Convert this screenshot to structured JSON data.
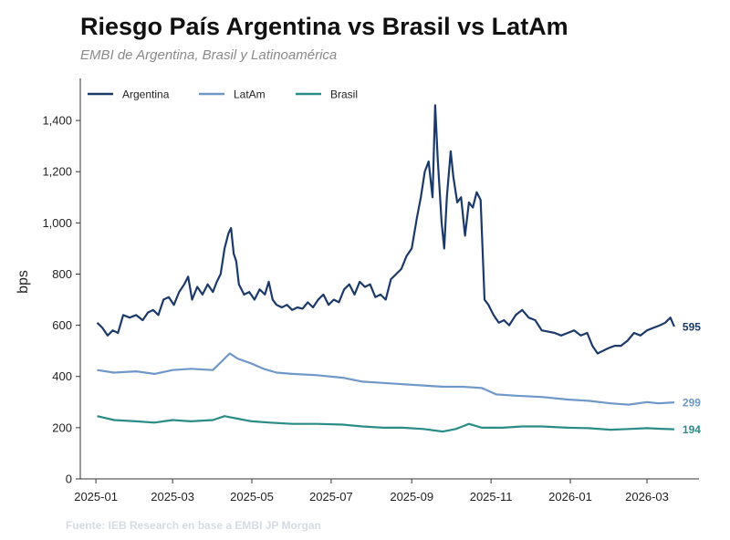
{
  "title": "Riesgo País Argentina vs Brasil vs LatAm",
  "subtitle": "EMBI de Argentina, Brasil y Latinoamérica",
  "source": "Fuente: IEB Research en base a EMBI JP Morgan",
  "chart_data": {
    "type": "line",
    "title": "Riesgo País Argentina vs Brasil vs LatAm",
    "subtitle": "EMBI de Argentina, Brasil y Latinoamérica",
    "xlabel": "",
    "ylabel": "bps",
    "ylim": [
      0,
      1550
    ],
    "xlim": [
      "2024-12-20",
      "2026-04-10"
    ],
    "yticks": [
      0,
      200,
      400,
      600,
      800,
      1000,
      1200,
      1400
    ],
    "ytick_labels": [
      "0",
      "200",
      "400",
      "600",
      "800",
      "1,000",
      "1,200",
      "1,400"
    ],
    "xticks": [
      "2025-01",
      "2025-03",
      "2025-05",
      "2025-07",
      "2025-09",
      "2025-11",
      "2026-01",
      "2026-03"
    ],
    "grid": false,
    "legend": "top-left",
    "series": [
      {
        "name": "Argentina",
        "color": "#1b3a6b",
        "end_label": "595",
        "points": [
          [
            "2025-01-02",
            610
          ],
          [
            "2025-01-06",
            590
          ],
          [
            "2025-01-10",
            560
          ],
          [
            "2025-01-14",
            580
          ],
          [
            "2025-01-18",
            570
          ],
          [
            "2025-01-22",
            640
          ],
          [
            "2025-01-27",
            630
          ],
          [
            "2025-02-01",
            640
          ],
          [
            "2025-02-06",
            620
          ],
          [
            "2025-02-10",
            650
          ],
          [
            "2025-02-14",
            660
          ],
          [
            "2025-02-18",
            640
          ],
          [
            "2025-02-22",
            700
          ],
          [
            "2025-02-26",
            710
          ],
          [
            "2025-03-02",
            680
          ],
          [
            "2025-03-06",
            730
          ],
          [
            "2025-03-10",
            760
          ],
          [
            "2025-03-13",
            790
          ],
          [
            "2025-03-16",
            700
          ],
          [
            "2025-03-20",
            750
          ],
          [
            "2025-03-24",
            720
          ],
          [
            "2025-03-28",
            760
          ],
          [
            "2025-04-01",
            730
          ],
          [
            "2025-04-04",
            770
          ],
          [
            "2025-04-07",
            800
          ],
          [
            "2025-04-10",
            900
          ],
          [
            "2025-04-13",
            960
          ],
          [
            "2025-04-15",
            980
          ],
          [
            "2025-04-17",
            880
          ],
          [
            "2025-04-19",
            850
          ],
          [
            "2025-04-21",
            760
          ],
          [
            "2025-04-25",
            720
          ],
          [
            "2025-04-29",
            730
          ],
          [
            "2025-05-03",
            700
          ],
          [
            "2025-05-07",
            740
          ],
          [
            "2025-05-11",
            720
          ],
          [
            "2025-05-14",
            770
          ],
          [
            "2025-05-17",
            700
          ],
          [
            "2025-05-20",
            680
          ],
          [
            "2025-05-24",
            670
          ],
          [
            "2025-05-28",
            680
          ],
          [
            "2025-06-01",
            660
          ],
          [
            "2025-06-05",
            670
          ],
          [
            "2025-06-09",
            665
          ],
          [
            "2025-06-13",
            690
          ],
          [
            "2025-06-17",
            670
          ],
          [
            "2025-06-21",
            700
          ],
          [
            "2025-06-25",
            720
          ],
          [
            "2025-06-29",
            680
          ],
          [
            "2025-07-03",
            700
          ],
          [
            "2025-07-07",
            690
          ],
          [
            "2025-07-11",
            740
          ],
          [
            "2025-07-15",
            760
          ],
          [
            "2025-07-19",
            720
          ],
          [
            "2025-07-23",
            770
          ],
          [
            "2025-07-27",
            750
          ],
          [
            "2025-07-31",
            760
          ],
          [
            "2025-08-04",
            710
          ],
          [
            "2025-08-08",
            720
          ],
          [
            "2025-08-12",
            700
          ],
          [
            "2025-08-16",
            780
          ],
          [
            "2025-08-20",
            800
          ],
          [
            "2025-08-24",
            820
          ],
          [
            "2025-08-28",
            870
          ],
          [
            "2025-09-01",
            900
          ],
          [
            "2025-09-05",
            1020
          ],
          [
            "2025-09-08",
            1100
          ],
          [
            "2025-09-11",
            1200
          ],
          [
            "2025-09-14",
            1240
          ],
          [
            "2025-09-17",
            1100
          ],
          [
            "2025-09-19",
            1460
          ],
          [
            "2025-09-21",
            1250
          ],
          [
            "2025-09-24",
            1000
          ],
          [
            "2025-09-26",
            900
          ],
          [
            "2025-09-28",
            1100
          ],
          [
            "2025-10-01",
            1280
          ],
          [
            "2025-10-03",
            1180
          ],
          [
            "2025-10-06",
            1080
          ],
          [
            "2025-10-09",
            1100
          ],
          [
            "2025-10-12",
            950
          ],
          [
            "2025-10-15",
            1080
          ],
          [
            "2025-10-18",
            1060
          ],
          [
            "2025-10-21",
            1120
          ],
          [
            "2025-10-24",
            1090
          ],
          [
            "2025-10-27",
            700
          ],
          [
            "2025-10-30",
            680
          ],
          [
            "2025-11-03",
            640
          ],
          [
            "2025-11-07",
            610
          ],
          [
            "2025-11-11",
            620
          ],
          [
            "2025-11-15",
            600
          ],
          [
            "2025-11-20",
            640
          ],
          [
            "2025-11-25",
            660
          ],
          [
            "2025-11-30",
            630
          ],
          [
            "2025-12-05",
            620
          ],
          [
            "2025-12-10",
            580
          ],
          [
            "2025-12-15",
            575
          ],
          [
            "2025-12-20",
            570
          ],
          [
            "2025-12-25",
            560
          ],
          [
            "2025-12-30",
            570
          ],
          [
            "2026-01-04",
            580
          ],
          [
            "2026-01-09",
            560
          ],
          [
            "2026-01-14",
            570
          ],
          [
            "2026-01-18",
            520
          ],
          [
            "2026-01-22",
            490
          ],
          [
            "2026-01-26",
            500
          ],
          [
            "2026-01-30",
            510
          ],
          [
            "2026-02-04",
            520
          ],
          [
            "2026-02-09",
            520
          ],
          [
            "2026-02-14",
            540
          ],
          [
            "2026-02-19",
            570
          ],
          [
            "2026-02-24",
            560
          ],
          [
            "2026-03-01",
            580
          ],
          [
            "2026-03-06",
            590
          ],
          [
            "2026-03-11",
            600
          ],
          [
            "2026-03-15",
            610
          ],
          [
            "2026-03-19",
            630
          ],
          [
            "2026-03-22",
            595
          ]
        ]
      },
      {
        "name": "LatAm",
        "color": "#6f97c8",
        "end_label": "299",
        "points": [
          [
            "2025-01-02",
            425
          ],
          [
            "2025-01-15",
            415
          ],
          [
            "2025-02-01",
            420
          ],
          [
            "2025-02-15",
            410
          ],
          [
            "2025-03-01",
            425
          ],
          [
            "2025-03-15",
            430
          ],
          [
            "2025-04-01",
            425
          ],
          [
            "2025-04-10",
            470
          ],
          [
            "2025-04-14",
            490
          ],
          [
            "2025-04-20",
            470
          ],
          [
            "2025-05-01",
            450
          ],
          [
            "2025-05-10",
            430
          ],
          [
            "2025-05-20",
            415
          ],
          [
            "2025-06-01",
            410
          ],
          [
            "2025-06-20",
            405
          ],
          [
            "2025-07-10",
            395
          ],
          [
            "2025-07-25",
            380
          ],
          [
            "2025-08-10",
            375
          ],
          [
            "2025-08-25",
            370
          ],
          [
            "2025-09-10",
            365
          ],
          [
            "2025-09-25",
            360
          ],
          [
            "2025-10-10",
            360
          ],
          [
            "2025-10-25",
            355
          ],
          [
            "2025-11-05",
            330
          ],
          [
            "2025-11-20",
            325
          ],
          [
            "2025-12-10",
            320
          ],
          [
            "2025-12-30",
            310
          ],
          [
            "2026-01-15",
            305
          ],
          [
            "2026-02-01",
            295
          ],
          [
            "2026-02-15",
            290
          ],
          [
            "2026-03-01",
            300
          ],
          [
            "2026-03-10",
            295
          ],
          [
            "2026-03-22",
            299
          ]
        ]
      },
      {
        "name": "Brasil",
        "color": "#2a8c86",
        "end_label": "194",
        "points": [
          [
            "2025-01-02",
            245
          ],
          [
            "2025-01-15",
            230
          ],
          [
            "2025-02-01",
            225
          ],
          [
            "2025-02-15",
            220
          ],
          [
            "2025-03-01",
            230
          ],
          [
            "2025-03-15",
            225
          ],
          [
            "2025-04-01",
            230
          ],
          [
            "2025-04-10",
            245
          ],
          [
            "2025-04-20",
            235
          ],
          [
            "2025-05-01",
            225
          ],
          [
            "2025-05-15",
            220
          ],
          [
            "2025-06-01",
            215
          ],
          [
            "2025-06-20",
            215
          ],
          [
            "2025-07-10",
            212
          ],
          [
            "2025-07-25",
            205
          ],
          [
            "2025-08-10",
            200
          ],
          [
            "2025-08-25",
            200
          ],
          [
            "2025-09-10",
            195
          ],
          [
            "2025-09-25",
            185
          ],
          [
            "2025-10-05",
            195
          ],
          [
            "2025-10-15",
            215
          ],
          [
            "2025-10-25",
            200
          ],
          [
            "2025-11-10",
            200
          ],
          [
            "2025-11-25",
            205
          ],
          [
            "2025-12-10",
            205
          ],
          [
            "2025-12-30",
            200
          ],
          [
            "2026-01-15",
            198
          ],
          [
            "2026-02-01",
            192
          ],
          [
            "2026-02-15",
            195
          ],
          [
            "2026-03-01",
            198
          ],
          [
            "2026-03-10",
            196
          ],
          [
            "2026-03-22",
            194
          ]
        ]
      }
    ]
  }
}
